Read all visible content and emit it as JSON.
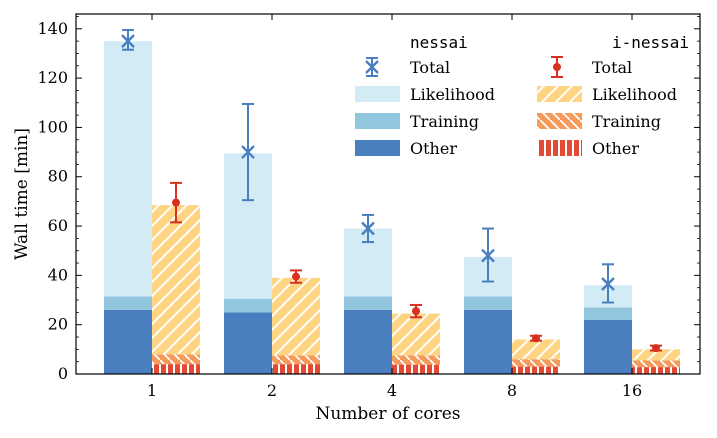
{
  "chart_data": {
    "type": "bar",
    "xlabel": "Number of cores",
    "ylabel": "Wall time [min]",
    "categories": [
      "1",
      "2",
      "4",
      "8",
      "16"
    ],
    "ylim": [
      0,
      146
    ],
    "yticks": [
      0,
      20,
      40,
      60,
      80,
      100,
      120,
      140
    ],
    "colors": {
      "nessai_likelihood": "#d2ebf5",
      "nessai_training": "#92c5de",
      "nessai_other": "#4a7fbf",
      "nessai_total": "#4a7fbf",
      "inessai_likelihood": "#fed483",
      "inessai_training": "#f59a5a",
      "inessai_other": "#e34a33",
      "inessai_total": "#d7301f"
    },
    "groups": [
      {
        "name": "nessai",
        "total": {
          "mean": [
            135,
            90,
            59,
            48,
            36.5
          ],
          "err_low": [
            3.5,
            19.5,
            5.5,
            10.5,
            7.5
          ],
          "err_high": [
            4.5,
            19.5,
            5.5,
            11,
            8
          ]
        },
        "stack": {
          "other": [
            26,
            25,
            26,
            26,
            22
          ],
          "training": [
            5.5,
            5.5,
            5.5,
            5.5,
            5
          ],
          "likelihood": [
            103.5,
            59,
            27.5,
            16,
            9
          ]
        }
      },
      {
        "name": "i-nessai",
        "total": {
          "mean": [
            69.5,
            39.5,
            25.5,
            14.5,
            10.5
          ],
          "err_low": [
            8,
            2.5,
            2.5,
            1,
            1
          ],
          "err_high": [
            8,
            2.5,
            2.5,
            1,
            1
          ]
        },
        "stack": {
          "other": [
            4,
            4,
            3.8,
            3,
            2.8
          ],
          "training": [
            4,
            3.5,
            3.7,
            3,
            2.7
          ],
          "likelihood": [
            60.5,
            31.5,
            17,
            8,
            4.5
          ]
        }
      }
    ],
    "legend": {
      "nessai_title": "nessai",
      "inessai_title": "i-nessai",
      "labels": [
        "Total",
        "Likelihood",
        "Training",
        "Other"
      ]
    }
  }
}
